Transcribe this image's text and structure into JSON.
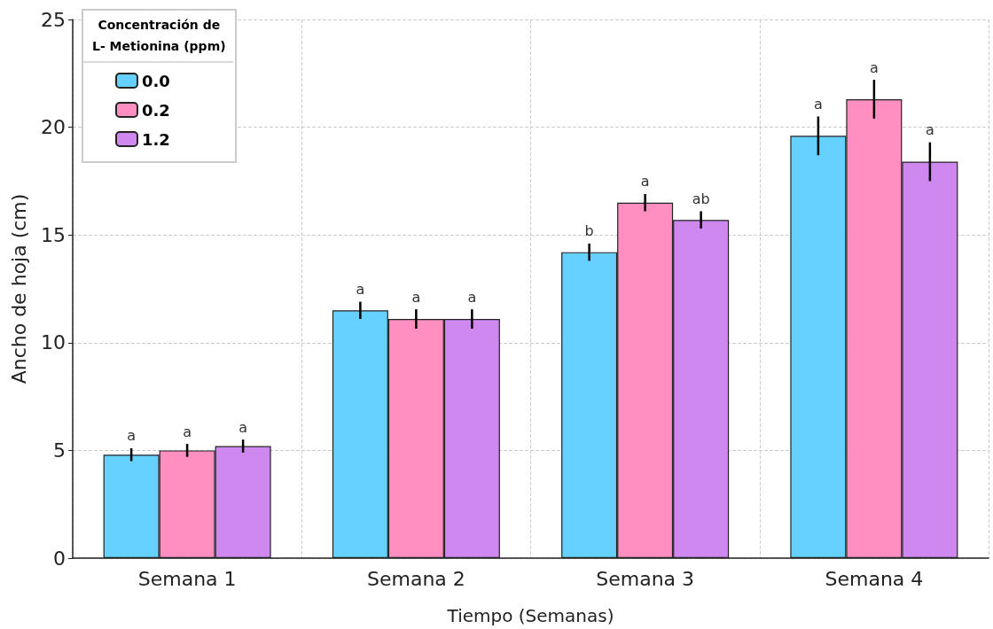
{
  "chart_data": {
    "type": "bar",
    "xlabel": "Tiempo (Semanas)",
    "ylabel": "Ancho de hoja (cm)",
    "legend_title": "Concentración de\nL- Metionina (ppm)",
    "categories": [
      "Semana 1",
      "Semana 2",
      "Semana 3",
      "Semana 4"
    ],
    "series": [
      {
        "name": "0.0",
        "color": "#66d0ff",
        "values": [
          4.8,
          11.5,
          14.2,
          19.6
        ],
        "errors": [
          0.3,
          0.4,
          0.4,
          0.9
        ],
        "value_labels": [
          "a",
          "a",
          "b",
          "a"
        ]
      },
      {
        "name": "0.2",
        "color": "#ff8fc0",
        "values": [
          5.0,
          11.1,
          16.5,
          21.3
        ],
        "errors": [
          0.3,
          0.45,
          0.4,
          0.9
        ],
        "value_labels": [
          "a",
          "a",
          "a",
          "a"
        ]
      },
      {
        "name": "1.2",
        "color": "#cf88f0",
        "values": [
          5.2,
          11.1,
          15.7,
          18.4
        ],
        "errors": [
          0.3,
          0.45,
          0.4,
          0.9
        ],
        "value_labels": [
          "a",
          "a",
          "ab",
          "a"
        ]
      }
    ],
    "ylim": [
      0,
      25
    ],
    "yticks": [
      0,
      5,
      10,
      15,
      20,
      25
    ],
    "grid": true,
    "legend": "top left"
  }
}
